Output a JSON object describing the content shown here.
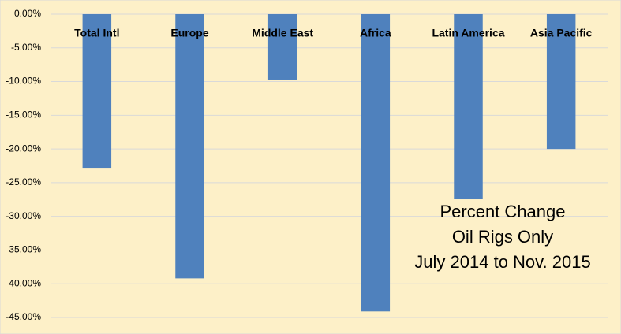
{
  "chart_data": {
    "type": "bar",
    "categories": [
      "Total Intl",
      "Europe",
      "Middle East",
      "Africa",
      "Latin America",
      "Asia Pacific"
    ],
    "values": [
      -22.8,
      -39.2,
      -9.7,
      -44.1,
      -27.4,
      -20.0
    ],
    "color": "#4f81bd",
    "ylim": [
      -45,
      0
    ],
    "yticks": [
      {
        "value": 0,
        "label": "0.00%"
      },
      {
        "value": -5,
        "label": "-5.00%"
      },
      {
        "value": -10,
        "label": "-10.00%"
      },
      {
        "value": -15,
        "label": "-15.00%"
      },
      {
        "value": -20,
        "label": "-20.00%"
      },
      {
        "value": -25,
        "label": "-25.00%"
      },
      {
        "value": -30,
        "label": "-30.00%"
      },
      {
        "value": -35,
        "label": "-35.00%"
      },
      {
        "value": -40,
        "label": "-40.00%"
      },
      {
        "value": -45,
        "label": "-45.00%"
      }
    ],
    "grid": true,
    "annotation": [
      "Percent Change",
      "Oil Rigs Only",
      "July 2014 to Nov. 2015"
    ]
  }
}
